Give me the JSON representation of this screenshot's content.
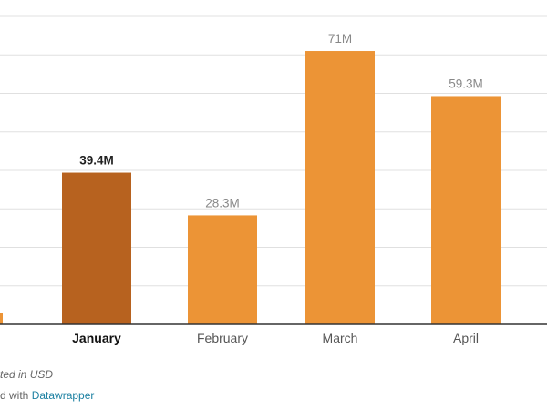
{
  "chart_data": {
    "type": "bar",
    "categories": [
      "",
      "January",
      "February",
      "March",
      "April"
    ],
    "values": [
      3,
      39.4,
      28.3,
      71,
      59.3
    ],
    "data_labels": [
      "",
      "39.4M",
      "28.3M",
      "71M",
      "59.3M"
    ],
    "highlight_index": 1,
    "ylim": [
      0,
      80
    ],
    "grid": true,
    "colors": {
      "bar": "#ec9436",
      "highlight": "#b7621f",
      "grid": "#e0e0e0",
      "axis": "#333333"
    }
  },
  "footer": {
    "note": "ted in USD",
    "credit_prefix": "d with ",
    "credit_link": "Datawrapper"
  }
}
